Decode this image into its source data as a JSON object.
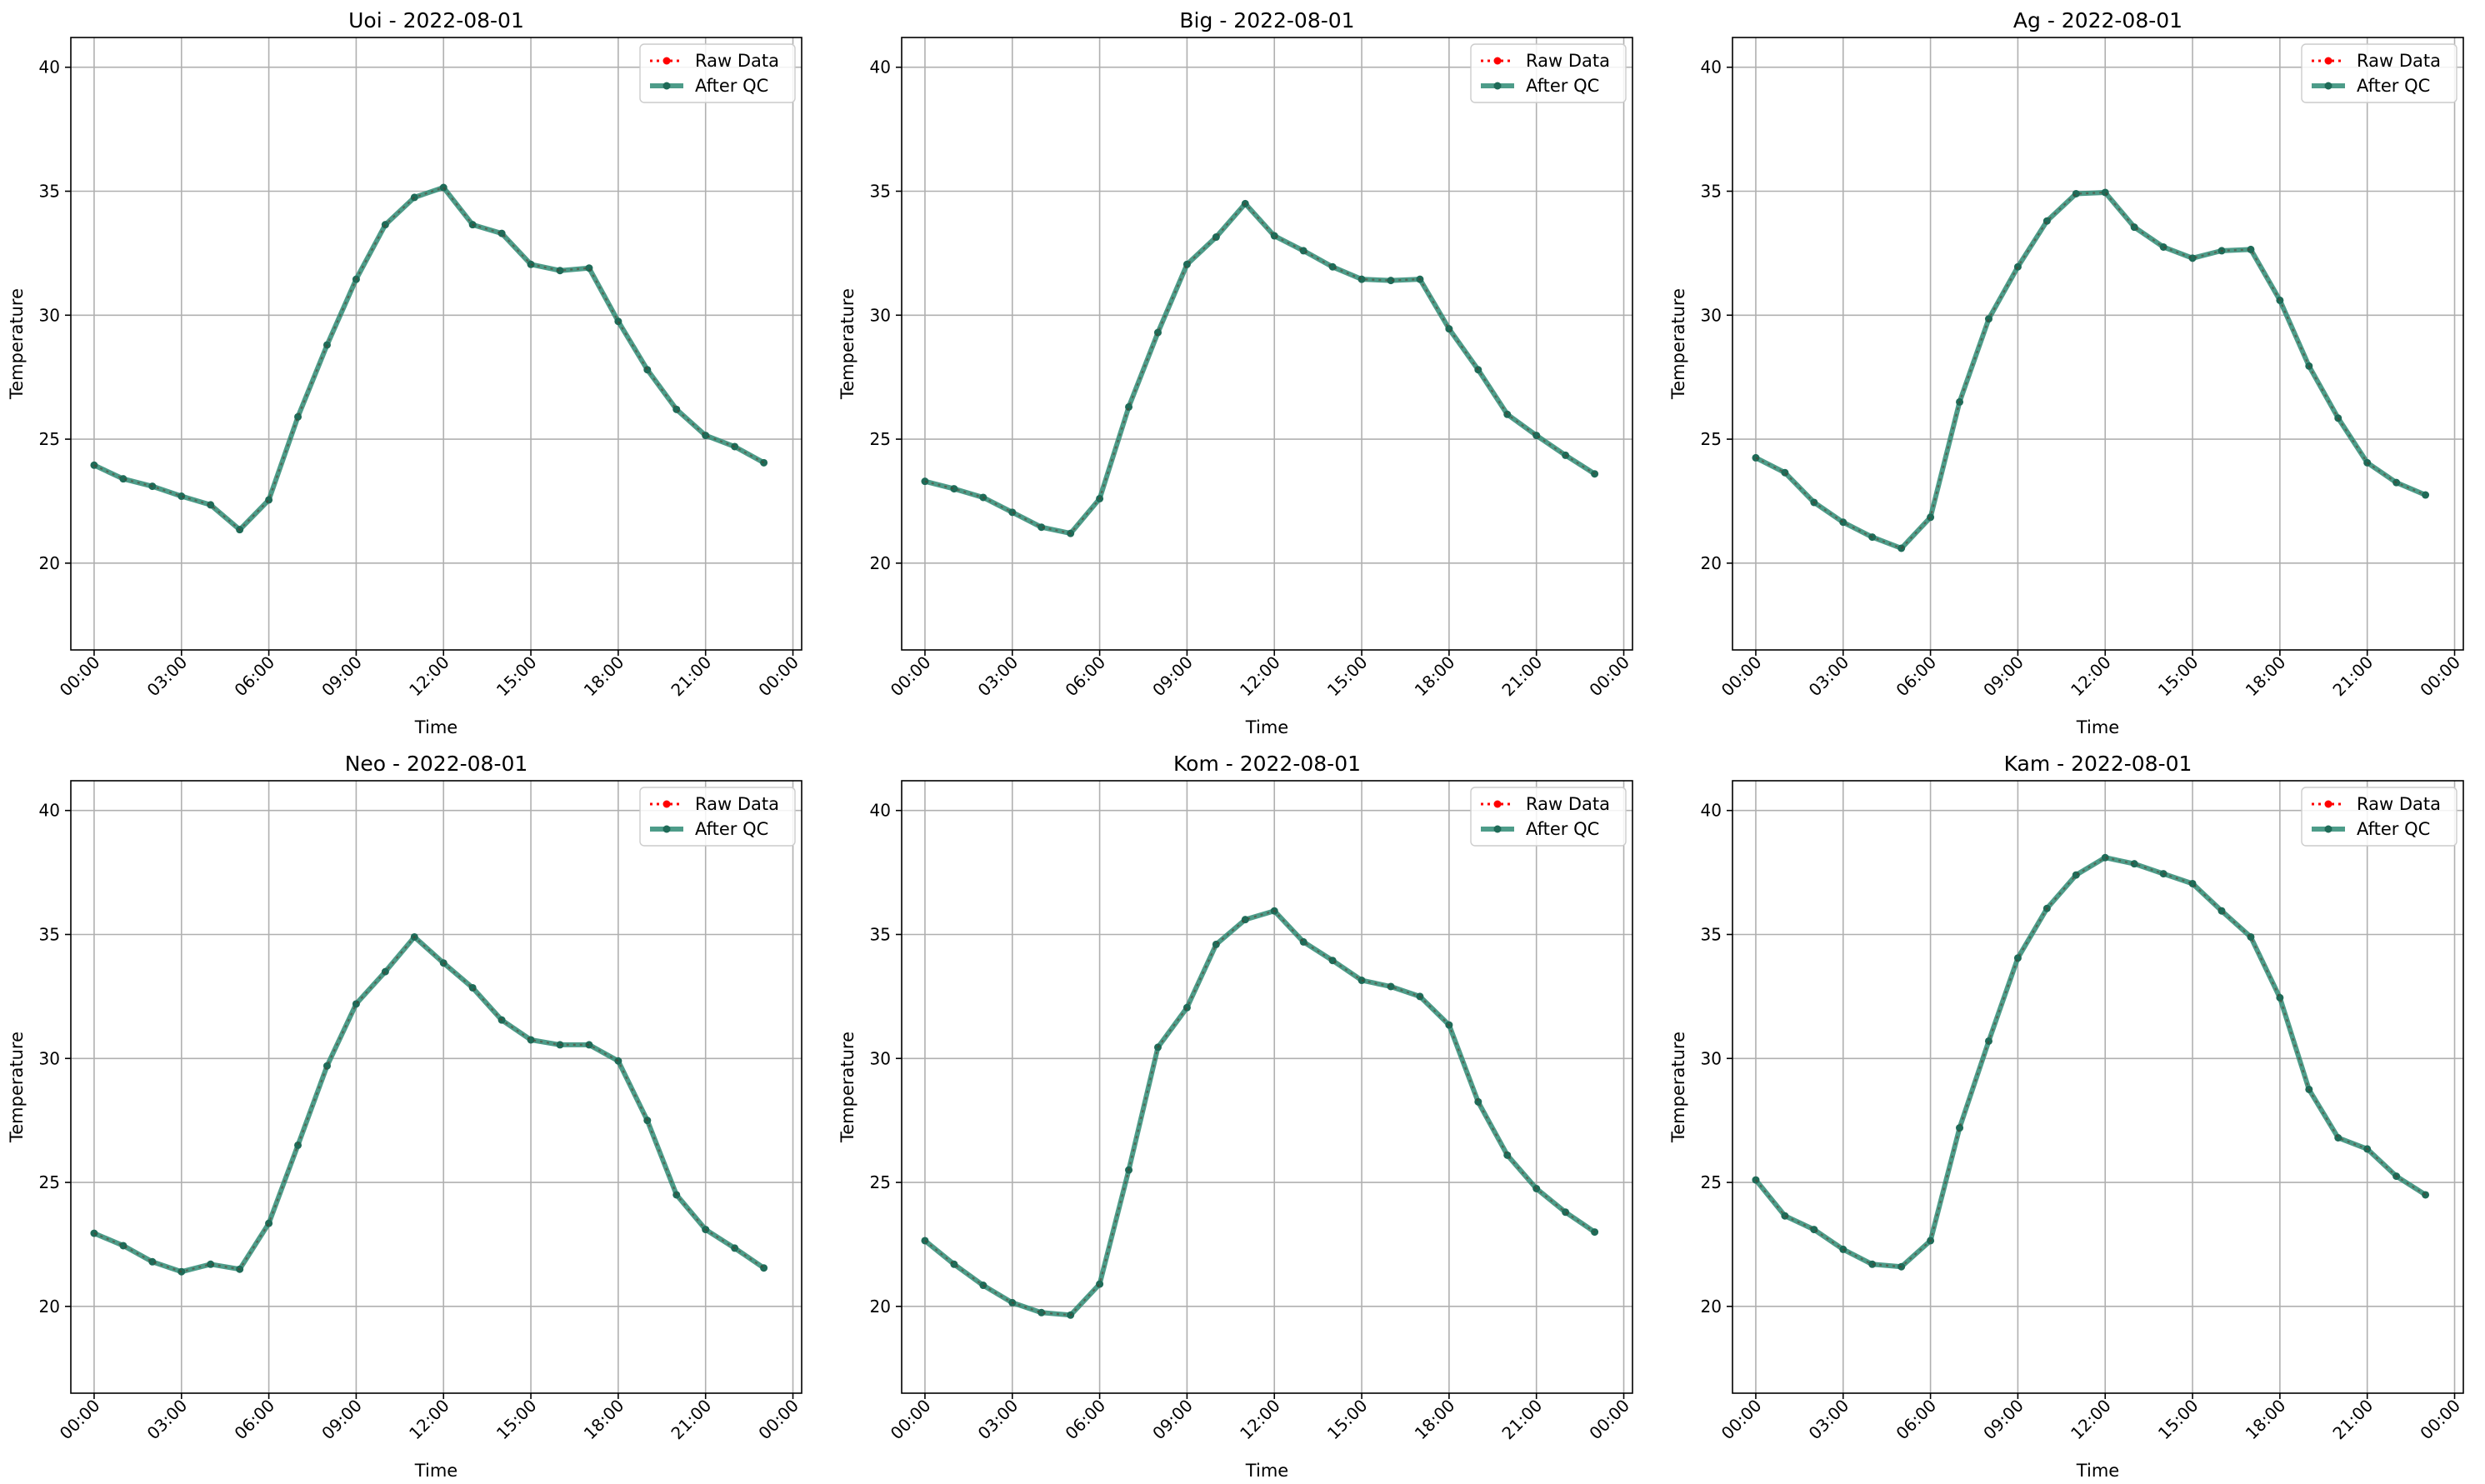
{
  "chart_data": [
    {
      "type": "line",
      "title": "Uoi - 2022-08-01",
      "xlabel": "Time",
      "ylabel": "Temperature",
      "ylim": [
        16.5,
        41.2
      ],
      "y_ticks": [
        20,
        25,
        30,
        35,
        40
      ],
      "x_tick_labels": [
        "00:00",
        "03:00",
        "06:00",
        "09:00",
        "12:00",
        "15:00",
        "18:00",
        "21:00",
        "00:00"
      ],
      "x_hours": [
        0,
        1,
        2,
        3,
        4,
        5,
        6,
        7,
        8,
        9,
        10,
        11,
        12,
        13,
        14,
        15,
        16,
        17,
        18,
        19,
        20,
        21,
        22,
        23
      ],
      "grid": true,
      "legend_position": "upper-right",
      "series": [
        {
          "name": "Raw Data",
          "values": [
            23.95,
            23.4,
            23.1,
            22.7,
            22.35,
            21.35,
            22.55,
            25.9,
            28.8,
            31.45,
            33.65,
            34.75,
            35.15,
            33.65,
            33.3,
            32.05,
            31.8,
            31.9,
            29.75,
            27.8,
            26.2,
            25.15,
            24.7,
            24.05
          ]
        },
        {
          "name": "After QC",
          "values": [
            23.95,
            23.4,
            23.1,
            22.7,
            22.35,
            21.35,
            22.55,
            25.9,
            28.8,
            31.45,
            33.65,
            34.75,
            35.15,
            33.65,
            33.3,
            32.05,
            31.8,
            31.9,
            29.75,
            27.8,
            26.2,
            25.15,
            24.7,
            24.05
          ]
        }
      ]
    },
    {
      "type": "line",
      "title": "Big - 2022-08-01",
      "xlabel": "Time",
      "ylabel": "Temperature",
      "ylim": [
        16.5,
        41.2
      ],
      "y_ticks": [
        20,
        25,
        30,
        35,
        40
      ],
      "x_tick_labels": [
        "00:00",
        "03:00",
        "06:00",
        "09:00",
        "12:00",
        "15:00",
        "18:00",
        "21:00",
        "00:00"
      ],
      "x_hours": [
        0,
        1,
        2,
        3,
        4,
        5,
        6,
        7,
        8,
        9,
        10,
        11,
        12,
        13,
        14,
        15,
        16,
        17,
        18,
        19,
        20,
        21,
        22,
        23
      ],
      "grid": true,
      "legend_position": "upper-right",
      "series": [
        {
          "name": "Raw Data",
          "values": [
            23.3,
            23.0,
            22.65,
            22.05,
            21.45,
            21.2,
            22.6,
            26.3,
            29.3,
            32.05,
            33.15,
            34.5,
            33.2,
            32.6,
            31.95,
            31.45,
            31.4,
            31.45,
            29.45,
            27.8,
            26.0,
            25.15,
            24.35,
            23.6
          ]
        },
        {
          "name": "After QC",
          "values": [
            23.3,
            23.0,
            22.65,
            22.05,
            21.45,
            21.2,
            22.6,
            26.3,
            29.3,
            32.05,
            33.15,
            34.5,
            33.2,
            32.6,
            31.95,
            31.45,
            31.4,
            31.45,
            29.45,
            27.8,
            26.0,
            25.15,
            24.35,
            23.6
          ]
        }
      ]
    },
    {
      "type": "line",
      "title": "Ag - 2022-08-01",
      "xlabel": "Time",
      "ylabel": "Temperature",
      "ylim": [
        16.5,
        41.2
      ],
      "y_ticks": [
        20,
        25,
        30,
        35,
        40
      ],
      "x_tick_labels": [
        "00:00",
        "03:00",
        "06:00",
        "09:00",
        "12:00",
        "15:00",
        "18:00",
        "21:00",
        "00:00"
      ],
      "x_hours": [
        0,
        1,
        2,
        3,
        4,
        5,
        6,
        7,
        8,
        9,
        10,
        11,
        12,
        13,
        14,
        15,
        16,
        17,
        18,
        19,
        20,
        21,
        22,
        23
      ],
      "grid": true,
      "legend_position": "upper-right",
      "series": [
        {
          "name": "Raw Data",
          "values": [
            24.25,
            23.65,
            22.45,
            21.65,
            21.05,
            20.6,
            21.85,
            26.5,
            29.85,
            31.95,
            33.8,
            34.9,
            34.95,
            33.55,
            32.75,
            32.3,
            32.6,
            32.65,
            30.6,
            27.95,
            25.85,
            24.05,
            23.25,
            22.75
          ]
        },
        {
          "name": "After QC",
          "values": [
            24.25,
            23.65,
            22.45,
            21.65,
            21.05,
            20.6,
            21.85,
            26.5,
            29.85,
            31.95,
            33.8,
            34.9,
            34.95,
            33.55,
            32.75,
            32.3,
            32.6,
            32.65,
            30.6,
            27.95,
            25.85,
            24.05,
            23.25,
            22.75
          ]
        }
      ]
    },
    {
      "type": "line",
      "title": "Neo - 2022-08-01",
      "xlabel": "Time",
      "ylabel": "Temperature",
      "ylim": [
        16.5,
        41.2
      ],
      "y_ticks": [
        20,
        25,
        30,
        35,
        40
      ],
      "x_tick_labels": [
        "00:00",
        "03:00",
        "06:00",
        "09:00",
        "12:00",
        "15:00",
        "18:00",
        "21:00",
        "00:00"
      ],
      "x_hours": [
        0,
        1,
        2,
        3,
        4,
        5,
        6,
        7,
        8,
        9,
        10,
        11,
        12,
        13,
        14,
        15,
        16,
        17,
        18,
        19,
        20,
        21,
        22,
        23
      ],
      "grid": true,
      "legend_position": "upper-right",
      "series": [
        {
          "name": "Raw Data",
          "values": [
            22.95,
            22.45,
            21.8,
            21.4,
            21.7,
            21.5,
            23.35,
            26.5,
            29.7,
            32.2,
            33.5,
            34.9,
            33.85,
            32.85,
            31.55,
            30.75,
            30.55,
            30.55,
            29.9,
            27.5,
            24.5,
            23.1,
            22.35,
            21.55
          ]
        },
        {
          "name": "After QC",
          "values": [
            22.95,
            22.45,
            21.8,
            21.4,
            21.7,
            21.5,
            23.35,
            26.5,
            29.7,
            32.2,
            33.5,
            34.9,
            33.85,
            32.85,
            31.55,
            30.75,
            30.55,
            30.55,
            29.9,
            27.5,
            24.5,
            23.1,
            22.35,
            21.55
          ]
        }
      ]
    },
    {
      "type": "line",
      "title": "Kom - 2022-08-01",
      "xlabel": "Time",
      "ylabel": "Temperature",
      "ylim": [
        16.5,
        41.2
      ],
      "y_ticks": [
        20,
        25,
        30,
        35,
        40
      ],
      "x_tick_labels": [
        "00:00",
        "03:00",
        "06:00",
        "09:00",
        "12:00",
        "15:00",
        "18:00",
        "21:00",
        "00:00"
      ],
      "x_hours": [
        0,
        1,
        2,
        3,
        4,
        5,
        6,
        7,
        8,
        9,
        10,
        11,
        12,
        13,
        14,
        15,
        16,
        17,
        18,
        19,
        20,
        21,
        22,
        23
      ],
      "grid": true,
      "legend_position": "upper-right",
      "series": [
        {
          "name": "Raw Data",
          "values": [
            22.65,
            21.7,
            20.85,
            20.15,
            19.75,
            19.65,
            20.9,
            25.5,
            30.45,
            32.05,
            34.6,
            35.6,
            35.95,
            34.7,
            33.95,
            33.15,
            32.9,
            32.5,
            31.35,
            28.25,
            26.1,
            24.75,
            23.8,
            23.0
          ]
        },
        {
          "name": "After QC",
          "values": [
            22.65,
            21.7,
            20.85,
            20.15,
            19.75,
            19.65,
            20.9,
            25.5,
            30.45,
            32.05,
            34.6,
            35.6,
            35.95,
            34.7,
            33.95,
            33.15,
            32.9,
            32.5,
            31.35,
            28.25,
            26.1,
            24.75,
            23.8,
            23.0
          ]
        }
      ]
    },
    {
      "type": "line",
      "title": "Kam - 2022-08-01",
      "xlabel": "Time",
      "ylabel": "Temperature",
      "ylim": [
        16.5,
        41.2
      ],
      "y_ticks": [
        20,
        25,
        30,
        35,
        40
      ],
      "x_tick_labels": [
        "00:00",
        "03:00",
        "06:00",
        "09:00",
        "12:00",
        "15:00",
        "18:00",
        "21:00",
        "00:00"
      ],
      "x_hours": [
        0,
        1,
        2,
        3,
        4,
        5,
        6,
        7,
        8,
        9,
        10,
        11,
        12,
        13,
        14,
        15,
        16,
        17,
        18,
        19,
        20,
        21,
        22,
        23
      ],
      "grid": true,
      "legend_position": "upper-right",
      "series": [
        {
          "name": "Raw Data",
          "values": [
            25.1,
            23.65,
            23.1,
            22.3,
            21.7,
            21.6,
            22.65,
            27.2,
            30.7,
            34.05,
            36.05,
            37.4,
            38.1,
            37.85,
            37.45,
            37.05,
            35.95,
            34.9,
            32.45,
            28.75,
            26.8,
            26.35,
            25.25,
            24.5
          ]
        },
        {
          "name": "After QC",
          "values": [
            25.1,
            23.65,
            23.1,
            22.3,
            21.7,
            21.6,
            22.65,
            27.2,
            30.7,
            34.05,
            36.05,
            37.4,
            38.1,
            37.85,
            37.45,
            37.05,
            35.95,
            34.9,
            32.45,
            28.75,
            26.8,
            26.35,
            25.25,
            24.5
          ]
        }
      ]
    }
  ],
  "style": {
    "raw_color": "#ff0000",
    "qc_color": "#2e8b74",
    "grid_color": "#b0b0b0",
    "axis_color": "#000000"
  }
}
